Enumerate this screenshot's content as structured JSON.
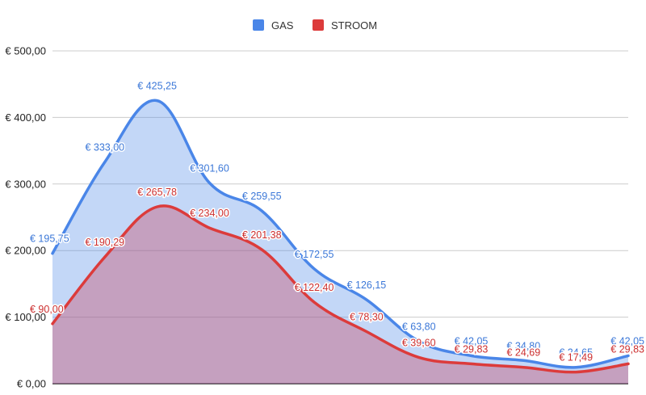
{
  "chart_data": {
    "type": "area",
    "title": "",
    "xlabel": "",
    "ylabel": "",
    "ylim": [
      0,
      500
    ],
    "yticks": [
      0,
      100,
      200,
      300,
      400,
      500
    ],
    "ytick_labels": [
      "€ 0,00",
      "€ 100,00",
      "€ 200,00",
      "€ 300,00",
      "€ 400,00",
      "€ 500,00"
    ],
    "grid": true,
    "legend_position": "top",
    "series": [
      {
        "name": "GAS",
        "color": "#4a86e8",
        "values": [
          195.75,
          333.0,
          425.25,
          301.6,
          259.55,
          172.55,
          126.15,
          63.8,
          42.05,
          34.8,
          24.65,
          42.05
        ],
        "labels": [
          "€ 195,75",
          "€ 333,00",
          "€ 425,25",
          "€ 301,60",
          "€ 259,55",
          "€ 172,55",
          "€ 126,15",
          "€ 63,80",
          "€ 42,05",
          "€ 34,80",
          "€ 24,65",
          "€ 42,05"
        ]
      },
      {
        "name": "STROOM",
        "color": "#dc3b3b",
        "values": [
          90.0,
          190.29,
          265.78,
          234.0,
          201.38,
          122.4,
          78.3,
          39.6,
          29.83,
          24.69,
          17.49,
          29.83
        ],
        "labels": [
          "€ 90,00",
          "€ 190,29",
          "€ 265,78",
          "€ 234,00",
          "€ 201,38",
          "€ 122,40",
          "€ 78,30",
          "€ 39,60",
          "€ 29,83",
          "€ 24,69",
          "€ 17,49",
          "€ 29,83"
        ]
      }
    ]
  }
}
